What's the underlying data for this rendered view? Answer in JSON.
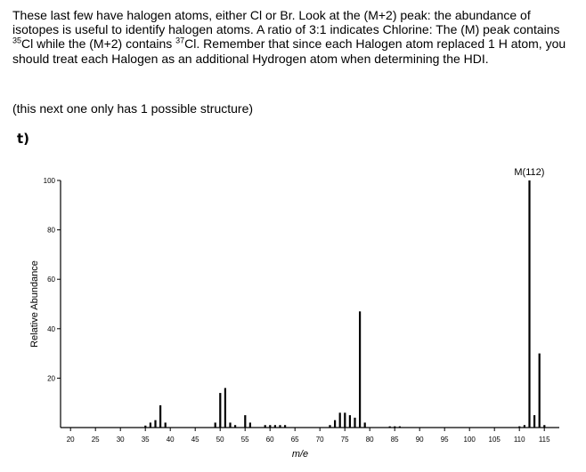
{
  "intro": {
    "p1": "These last few have halogen atoms, either Cl or Br. Look at the (M+2) peak: the abundance of isotopes is useful to identify halogen atoms. A ratio of 3:1 indicates Chlorine: The (M) peak contains ",
    "sup1": "35",
    "p2": "Cl while the (M+2) contains ",
    "sup2": "37",
    "p3": "Cl. Remember that since each Halogen atom replaced 1 H atom, you should treat each Halogen as an additional Hydrogen atom when determining the HDI."
  },
  "note": "(this next one only has 1 possible structure)",
  "part_label": "t)",
  "chart_data": {
    "type": "bar",
    "xlabel": "m/e",
    "ylabel": "Relative Abundance",
    "xlim": [
      18,
      118
    ],
    "ylim": [
      0,
      100
    ],
    "xticks": [
      20,
      25,
      30,
      35,
      40,
      45,
      50,
      55,
      60,
      65,
      70,
      75,
      80,
      85,
      90,
      95,
      100,
      105,
      110,
      115
    ],
    "yticks": [
      20,
      40,
      60,
      80,
      100
    ],
    "grid": false,
    "annotation": {
      "text": "M(112)",
      "x": 112,
      "y": 100
    },
    "peaks": {
      "x": [
        35,
        36,
        37,
        38,
        39,
        49,
        50,
        51,
        52,
        53,
        55,
        56,
        59,
        60,
        61,
        62,
        63,
        72,
        73,
        74,
        75,
        76,
        77,
        78,
        79,
        84,
        85,
        86,
        110,
        111,
        112,
        113,
        114,
        115
      ],
      "y": [
        0.8,
        2,
        3,
        9,
        2,
        2,
        14,
        16,
        2,
        1,
        5,
        2,
        1,
        1,
        1,
        1,
        1,
        1,
        3,
        6,
        6,
        5,
        4,
        47,
        2,
        0.5,
        0.5,
        0.5,
        0.5,
        1,
        100,
        5,
        30,
        1
      ]
    }
  }
}
